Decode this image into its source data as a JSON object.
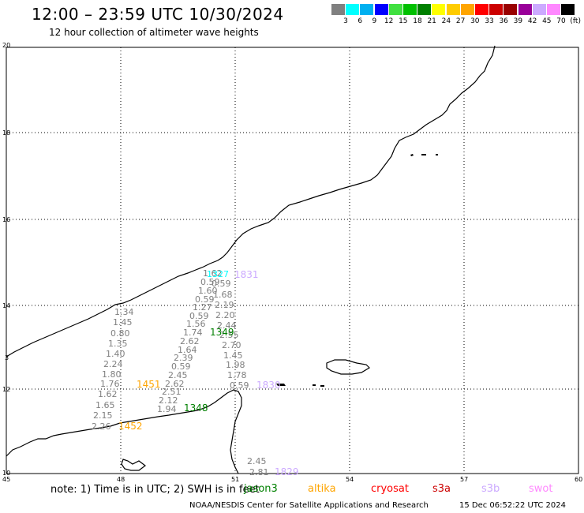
{
  "header": {
    "title": "12:00 – 23:59 UTC 10/30/2024",
    "subtitle": "12 hour collection of altimeter wave heights"
  },
  "legend": {
    "colors": [
      "#808080",
      "#00ffff",
      "#00b0f0",
      "#0000ff",
      "#40e040",
      "#00c000",
      "#008000",
      "#ffff00",
      "#ffcc00",
      "#ffa500",
      "#ff0000",
      "#cc0000",
      "#990000",
      "#990099",
      "#ccaaff",
      "#ff88ff",
      "#000000"
    ],
    "labels": [
      "3",
      "6",
      "9",
      "12",
      "15",
      "18",
      "21",
      "24",
      "27",
      "30",
      "33",
      "36",
      "39",
      "42",
      "45",
      "70",
      "(ft)"
    ]
  },
  "axes": {
    "lon_labels": [
      "45",
      "48",
      "51",
      "54",
      "57",
      "60"
    ],
    "lat_labels": [
      "20",
      "18",
      "16",
      "14",
      "12",
      "10"
    ]
  },
  "map_labels": {
    "west_edge": "3"
  },
  "tracks": {
    "track_a": [
      "1.34",
      "1.45",
      "0.80",
      "1.35",
      "1.40",
      "2.24",
      "1.80",
      "1.76",
      "1.62",
      "1.65",
      "2.15",
      "2.26"
    ],
    "track_b": [
      "0.59",
      "1.60",
      "0.59",
      "1.27",
      "0.59",
      "1.56",
      "1.74",
      "2.62",
      "1.64",
      "2.39",
      "0.59",
      "2.45",
      "2.62",
      "2.51",
      "2.12",
      "1.94"
    ],
    "track_b_top": "1.62",
    "track_c": [
      "0.59",
      "1.68",
      "2.19",
      "2.20",
      "2.44",
      "2.55",
      "2.70",
      "1.45",
      "1.98",
      "1.78",
      "0.59"
    ],
    "track_d": [
      "2.45",
      "2.81"
    ]
  },
  "time_labels": {
    "cyan_1": "1327",
    "lilac_1": "1831",
    "green_1": "1349",
    "orange_1": "1451",
    "lilac_2": "1830",
    "green_2": "1348",
    "orange_2": "1452",
    "lilac_3": "1829"
  },
  "note": {
    "text": "note: 1) Time is in UTC; 2) SWH is in feet"
  },
  "satellites": [
    {
      "name": "jason3",
      "color": "#008000"
    },
    {
      "name": "altika",
      "color": "#ffa500"
    },
    {
      "name": "cryosat",
      "color": "#ff0000"
    },
    {
      "name": "s3a",
      "color": "#cc0000"
    },
    {
      "name": "s3b",
      "color": "#ccaaff"
    },
    {
      "name": "swot",
      "color": "#ff88ff"
    }
  ],
  "footer": {
    "credit": "NOAA/NESDIS Center for Satellite Applications and Research",
    "generated": "15 Dec 06:52:22 UTC 2024"
  }
}
